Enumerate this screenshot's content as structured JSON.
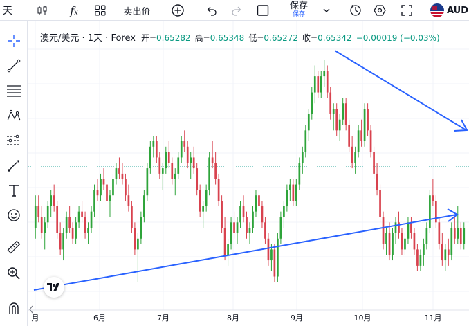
{
  "toolbar": {
    "left_cut_label": "天",
    "fx_label": "f",
    "fx_sub": "x",
    "sell_price_label": "卖出价",
    "save_label": "保存",
    "save_sublabel": "保存",
    "symbol_cut": "AUD"
  },
  "legend": {
    "symbol": "澳元/美元 · 1天 · Forex",
    "open_label": "开=",
    "open_value": "0.65282",
    "high_label": "高=",
    "high_value": "0.65348",
    "low_label": "低=",
    "low_value": "0.65272",
    "close_label": "收=",
    "close_value": "0.65342",
    "change": "−0.00019 (−0.03%)"
  },
  "colors": {
    "up": "#26a69a",
    "up_dark": "#2ea43a",
    "down": "#d8424e",
    "trendline": "#2962ff",
    "price_line": "#26a69a"
  },
  "icons": [
    "crosshair-icon",
    "trend-line-icon",
    "fib-icon",
    "pattern-icon",
    "forecast-icon",
    "brush-icon",
    "text-icon",
    "emoji-icon",
    "ruler-icon",
    "zoom-in-icon",
    "magnet-icon"
  ],
  "chart_data": {
    "type": "candlestick",
    "x_tick_labels": [
      "月",
      "6月",
      "7月",
      "8月",
      "9月",
      "10月",
      "11月"
    ],
    "trendlines": [
      {
        "from": "2024-05-15",
        "to": "2024-11-15",
        "direction": "rising"
      },
      {
        "from": "2024-09-19",
        "to": "2024-11-15",
        "direction": "falling"
      }
    ],
    "candles": [
      [
        0.662,
        0.668,
        0.66,
        0.666
      ],
      [
        0.666,
        0.668,
        0.663,
        0.664
      ],
      [
        0.664,
        0.666,
        0.66,
        0.661
      ],
      [
        0.661,
        0.664,
        0.658,
        0.663
      ],
      [
        0.663,
        0.667,
        0.662,
        0.666
      ],
      [
        0.666,
        0.669,
        0.664,
        0.668
      ],
      [
        0.668,
        0.67,
        0.665,
        0.666
      ],
      [
        0.666,
        0.667,
        0.66,
        0.661
      ],
      [
        0.661,
        0.663,
        0.657,
        0.658
      ],
      [
        0.658,
        0.662,
        0.656,
        0.661
      ],
      [
        0.661,
        0.665,
        0.66,
        0.664
      ],
      [
        0.664,
        0.666,
        0.661,
        0.662
      ],
      [
        0.662,
        0.663,
        0.659,
        0.66
      ],
      [
        0.66,
        0.664,
        0.659,
        0.663
      ],
      [
        0.663,
        0.666,
        0.662,
        0.665
      ],
      [
        0.665,
        0.667,
        0.663,
        0.664
      ],
      [
        0.664,
        0.665,
        0.66,
        0.661
      ],
      [
        0.661,
        0.663,
        0.659,
        0.662
      ],
      [
        0.662,
        0.666,
        0.661,
        0.665
      ],
      [
        0.665,
        0.67,
        0.664,
        0.669
      ],
      [
        0.669,
        0.671,
        0.667,
        0.668
      ],
      [
        0.668,
        0.672,
        0.667,
        0.671
      ],
      [
        0.671,
        0.673,
        0.669,
        0.67
      ],
      [
        0.67,
        0.671,
        0.666,
        0.667
      ],
      [
        0.667,
        0.669,
        0.664,
        0.668
      ],
      [
        0.668,
        0.672,
        0.667,
        0.671
      ],
      [
        0.671,
        0.674,
        0.67,
        0.673
      ],
      [
        0.673,
        0.675,
        0.671,
        0.672
      ],
      [
        0.672,
        0.674,
        0.67,
        0.671
      ],
      [
        0.671,
        0.672,
        0.667,
        0.668
      ],
      [
        0.668,
        0.67,
        0.665,
        0.666
      ],
      [
        0.666,
        0.667,
        0.661,
        0.662
      ],
      [
        0.662,
        0.663,
        0.657,
        0.658
      ],
      [
        0.658,
        0.661,
        0.652,
        0.66
      ],
      [
        0.66,
        0.665,
        0.659,
        0.664
      ],
      [
        0.664,
        0.669,
        0.663,
        0.668
      ],
      [
        0.668,
        0.674,
        0.667,
        0.673
      ],
      [
        0.673,
        0.678,
        0.672,
        0.677
      ],
      [
        0.677,
        0.679,
        0.675,
        0.678
      ],
      [
        0.678,
        0.679,
        0.674,
        0.675
      ],
      [
        0.675,
        0.676,
        0.671,
        0.672
      ],
      [
        0.672,
        0.674,
        0.669,
        0.673
      ],
      [
        0.673,
        0.677,
        0.672,
        0.676
      ],
      [
        0.676,
        0.678,
        0.673,
        0.674
      ],
      [
        0.674,
        0.675,
        0.67,
        0.671
      ],
      [
        0.671,
        0.673,
        0.668,
        0.672
      ],
      [
        0.672,
        0.676,
        0.671,
        0.675
      ],
      [
        0.675,
        0.679,
        0.674,
        0.678
      ],
      [
        0.678,
        0.68,
        0.676,
        0.677
      ],
      [
        0.677,
        0.678,
        0.673,
        0.674
      ],
      [
        0.674,
        0.676,
        0.671,
        0.675
      ],
      [
        0.675,
        0.677,
        0.672,
        0.673
      ],
      [
        0.673,
        0.674,
        0.668,
        0.669
      ],
      [
        0.669,
        0.67,
        0.664,
        0.665
      ],
      [
        0.665,
        0.667,
        0.662,
        0.666
      ],
      [
        0.666,
        0.67,
        0.665,
        0.669
      ],
      [
        0.669,
        0.676,
        0.668,
        0.675
      ],
      [
        0.675,
        0.678,
        0.673,
        0.674
      ],
      [
        0.674,
        0.676,
        0.67,
        0.671
      ],
      [
        0.671,
        0.672,
        0.666,
        0.667
      ],
      [
        0.667,
        0.668,
        0.661,
        0.662
      ],
      [
        0.662,
        0.664,
        0.656,
        0.657
      ],
      [
        0.657,
        0.66,
        0.655,
        0.659
      ],
      [
        0.659,
        0.664,
        0.658,
        0.663
      ],
      [
        0.663,
        0.665,
        0.66,
        0.661
      ],
      [
        0.661,
        0.664,
        0.659,
        0.663
      ],
      [
        0.663,
        0.667,
        0.662,
        0.666
      ],
      [
        0.666,
        0.668,
        0.663,
        0.664
      ],
      [
        0.664,
        0.665,
        0.66,
        0.661
      ],
      [
        0.661,
        0.663,
        0.659,
        0.662
      ],
      [
        0.662,
        0.666,
        0.661,
        0.665
      ],
      [
        0.665,
        0.669,
        0.664,
        0.668
      ],
      [
        0.668,
        0.669,
        0.665,
        0.666
      ],
      [
        0.666,
        0.667,
        0.662,
        0.663
      ],
      [
        0.663,
        0.664,
        0.659,
        0.66
      ],
      [
        0.66,
        0.661,
        0.655,
        0.656
      ],
      [
        0.656,
        0.659,
        0.654,
        0.658
      ],
      [
        0.658,
        0.659,
        0.652,
        0.653
      ],
      [
        0.653,
        0.661,
        0.652,
        0.66
      ],
      [
        0.66,
        0.665,
        0.659,
        0.664
      ],
      [
        0.664,
        0.667,
        0.662,
        0.666
      ],
      [
        0.666,
        0.67,
        0.665,
        0.669
      ],
      [
        0.669,
        0.671,
        0.667,
        0.67
      ],
      [
        0.67,
        0.671,
        0.666,
        0.667
      ],
      [
        0.667,
        0.671,
        0.666,
        0.67
      ],
      [
        0.67,
        0.675,
        0.669,
        0.674
      ],
      [
        0.674,
        0.677,
        0.672,
        0.676
      ],
      [
        0.676,
        0.681,
        0.675,
        0.68
      ],
      [
        0.68,
        0.684,
        0.678,
        0.683
      ],
      [
        0.683,
        0.688,
        0.682,
        0.687
      ],
      [
        0.687,
        0.692,
        0.685,
        0.69
      ],
      [
        0.69,
        0.691,
        0.686,
        0.687
      ],
      [
        0.687,
        0.691,
        0.686,
        0.69
      ],
      [
        0.69,
        0.693,
        0.688,
        0.691
      ],
      [
        0.691,
        0.692,
        0.686,
        0.687
      ],
      [
        0.687,
        0.688,
        0.682,
        0.683
      ],
      [
        0.683,
        0.685,
        0.68,
        0.684
      ],
      [
        0.684,
        0.685,
        0.679,
        0.68
      ],
      [
        0.68,
        0.683,
        0.678,
        0.682
      ],
      [
        0.682,
        0.686,
        0.681,
        0.685
      ],
      [
        0.685,
        0.686,
        0.68,
        0.681
      ],
      [
        0.681,
        0.682,
        0.676,
        0.677
      ],
      [
        0.677,
        0.679,
        0.673,
        0.674
      ],
      [
        0.674,
        0.677,
        0.672,
        0.676
      ],
      [
        0.676,
        0.681,
        0.675,
        0.68
      ],
      [
        0.68,
        0.682,
        0.677,
        0.678
      ],
      [
        0.678,
        0.685,
        0.677,
        0.684
      ],
      [
        0.684,
        0.685,
        0.679,
        0.68
      ],
      [
        0.68,
        0.681,
        0.675,
        0.676
      ],
      [
        0.676,
        0.677,
        0.671,
        0.672
      ],
      [
        0.672,
        0.674,
        0.668,
        0.669
      ],
      [
        0.669,
        0.67,
        0.663,
        0.664
      ],
      [
        0.664,
        0.665,
        0.658,
        0.659
      ],
      [
        0.659,
        0.662,
        0.657,
        0.661
      ],
      [
        0.661,
        0.663,
        0.656,
        0.657
      ],
      [
        0.657,
        0.662,
        0.656,
        0.661
      ],
      [
        0.661,
        0.664,
        0.659,
        0.663
      ],
      [
        0.663,
        0.665,
        0.66,
        0.661
      ],
      [
        0.661,
        0.662,
        0.657,
        0.658
      ],
      [
        0.658,
        0.661,
        0.657,
        0.66
      ],
      [
        0.66,
        0.664,
        0.659,
        0.663
      ],
      [
        0.663,
        0.664,
        0.66,
        0.661
      ],
      [
        0.661,
        0.662,
        0.657,
        0.658
      ],
      [
        0.658,
        0.659,
        0.654,
        0.655
      ],
      [
        0.655,
        0.658,
        0.654,
        0.657
      ],
      [
        0.657,
        0.66,
        0.655,
        0.659
      ],
      [
        0.659,
        0.663,
        0.658,
        0.662
      ],
      [
        0.662,
        0.669,
        0.661,
        0.668
      ],
      [
        0.668,
        0.671,
        0.666,
        0.667
      ],
      [
        0.667,
        0.668,
        0.662,
        0.663
      ],
      [
        0.663,
        0.664,
        0.658,
        0.659
      ],
      [
        0.659,
        0.661,
        0.655,
        0.656
      ],
      [
        0.656,
        0.659,
        0.654,
        0.658
      ],
      [
        0.658,
        0.66,
        0.655,
        0.657
      ],
      [
        0.657,
        0.663,
        0.656,
        0.662
      ],
      [
        0.662,
        0.664,
        0.659,
        0.66
      ],
      [
        0.66,
        0.666,
        0.659,
        0.662
      ],
      [
        0.662,
        0.663,
        0.658,
        0.659
      ],
      [
        0.659,
        0.663,
        0.658,
        0.662
      ]
    ]
  }
}
